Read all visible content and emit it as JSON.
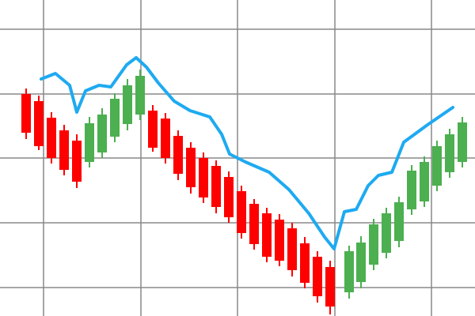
{
  "chart_data": {
    "type": "candlestick",
    "xlim": [
      0,
      600
    ],
    "ylim": [
      0,
      400
    ],
    "xticks": [
      55,
      178,
      300,
      423,
      545
    ],
    "yticks": [
      36,
      118,
      200,
      281,
      363
    ],
    "grid": true,
    "up_color": "#4caf50",
    "down_color": "#ff0000",
    "x": [
      33,
      49,
      65,
      81,
      97,
      113,
      129,
      145,
      161,
      177,
      193,
      209,
      225,
      241,
      257,
      273,
      289,
      305,
      321,
      337,
      353,
      369,
      385,
      401,
      417,
      441,
      456,
      472,
      488,
      504,
      520,
      536,
      552,
      568,
      584
    ],
    "open": [
      281,
      272,
      251,
      235,
      222,
      195,
      207,
      227,
      243,
      255,
      260,
      250,
      228,
      213,
      200,
      190,
      176,
      158,
      142,
      130,
      122,
      111,
      92,
      75,
      62,
      30,
      43,
      65,
      80,
      95,
      135,
      145,
      165,
      182,
      195
    ],
    "high": [
      288,
      279,
      258,
      242,
      230,
      252,
      263,
      282,
      300,
      312,
      267,
      257,
      235,
      220,
      207,
      197,
      183,
      165,
      148,
      137,
      129,
      118,
      100,
      82,
      70,
      89,
      101,
      123,
      137,
      151,
      191,
      202,
      222,
      237,
      252
    ],
    "low": [
      224,
      210,
      193,
      178,
      162,
      188,
      200,
      220,
      235,
      248,
      208,
      193,
      172,
      155,
      143,
      130,
      118,
      98,
      84,
      68,
      63,
      50,
      35,
      17,
      2,
      22,
      35,
      58,
      73,
      87,
      128,
      138,
      158,
      175,
      188
    ],
    "close": [
      232,
      215,
      200,
      185,
      170,
      244,
      255,
      275,
      292,
      304,
      213,
      200,
      180,
      163,
      150,
      138,
      125,
      105,
      91,
      75,
      70,
      58,
      42,
      25,
      12,
      82,
      93,
      116,
      130,
      144,
      184,
      195,
      215,
      230,
      245
    ],
    "line": {
      "color": "#1eaaf1",
      "x": [
        52,
        70,
        88,
        97,
        108,
        125,
        140,
        160,
        172,
        185,
        200,
        220,
        240,
        265,
        280,
        290,
        310,
        340,
        365,
        390,
        410,
        422,
        435,
        450,
        465,
        478,
        495,
        510,
        540,
        572
      ],
      "values": [
        300,
        307,
        292,
        258,
        285,
        292,
        290,
        318,
        327,
        315,
        295,
        272,
        260,
        252,
        230,
        205,
        195,
        182,
        160,
        130,
        100,
        85,
        132,
        135,
        165,
        178,
        182,
        220,
        242,
        264
      ]
    }
  }
}
